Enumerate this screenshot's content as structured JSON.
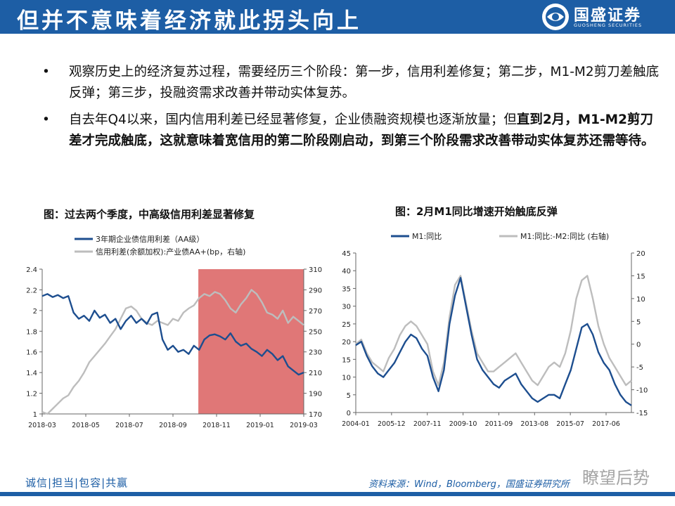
{
  "header": {
    "title": "但并不意味着经济就此拐头向上",
    "logo_name": "国盛证券",
    "logo_sub": "GUOSHENG SECURITIES"
  },
  "bullets": [
    {
      "text": "观察历史上的经济复苏过程，需要经历三个阶段：第一步，信用利差修复；第二步，M1-M2剪刀差触底反弹；第三步，投融资需求改善并带动实体复苏。"
    },
    {
      "plain": "自去年Q4以来，国内信用利差已经显著修复，企业债融资规模也逐渐放量；但",
      "bold": "直到2月，M1-M2剪刀差才完成触底，这就意味着宽信用的第二阶段刚启动，到第三个阶段需求改善带动实体复苏还需等待。"
    }
  ],
  "bullet_glyph": "•",
  "chart_data": [
    {
      "type": "line",
      "title": "图：过去两个季度，中高级信用利差显著修复",
      "x_tick_labels": [
        "2018-03",
        "2018-05",
        "2018-07",
        "2018-09",
        "2018-11",
        "2019-01",
        "2019-03"
      ],
      "x_range": [
        "2018-03",
        "2019-03"
      ],
      "y_left": {
        "range": [
          1,
          2.4
        ],
        "ticks": [
          "1",
          "1.2",
          "1.4",
          "1.6",
          "1.8",
          "2",
          "2.2",
          "2.4"
        ]
      },
      "y_right": {
        "range": [
          170,
          310
        ],
        "ticks": [
          "170",
          "190",
          "210",
          "230",
          "250",
          "270",
          "290",
          "310"
        ]
      },
      "highlight": {
        "from": 0.597,
        "to": 1.0,
        "color": "#e07777"
      },
      "series": [
        {
          "name": "3年期企业债信用利差（AA级）",
          "axis": "left",
          "color": "#1d4e8f",
          "x": [
            0,
            0.02,
            0.04,
            0.06,
            0.08,
            0.1,
            0.12,
            0.14,
            0.16,
            0.18,
            0.2,
            0.22,
            0.24,
            0.26,
            0.28,
            0.3,
            0.32,
            0.34,
            0.36,
            0.38,
            0.4,
            0.42,
            0.44,
            0.46,
            0.48,
            0.5,
            0.52,
            0.54,
            0.56,
            0.58,
            0.6,
            0.62,
            0.64,
            0.66,
            0.68,
            0.7,
            0.72,
            0.74,
            0.76,
            0.78,
            0.8,
            0.82,
            0.84,
            0.86,
            0.88,
            0.9,
            0.92,
            0.94,
            0.96,
            0.98,
            1.0
          ],
          "values": [
            2.14,
            2.16,
            2.13,
            2.15,
            2.12,
            2.14,
            1.98,
            1.92,
            1.95,
            1.9,
            2.0,
            1.93,
            1.96,
            1.88,
            1.92,
            1.82,
            1.9,
            1.95,
            1.88,
            1.92,
            1.87,
            1.96,
            1.98,
            1.72,
            1.62,
            1.66,
            1.6,
            1.62,
            1.58,
            1.66,
            1.62,
            1.72,
            1.76,
            1.77,
            1.75,
            1.72,
            1.78,
            1.7,
            1.66,
            1.68,
            1.63,
            1.6,
            1.56,
            1.62,
            1.58,
            1.52,
            1.56,
            1.46,
            1.42,
            1.38,
            1.4
          ]
        },
        {
          "name": "信用利差(余额加权):产业债AA+(bp，右轴)",
          "axis": "right",
          "color": "#bdbdbd",
          "x": [
            0,
            0.02,
            0.04,
            0.06,
            0.08,
            0.1,
            0.12,
            0.14,
            0.16,
            0.18,
            0.2,
            0.22,
            0.24,
            0.26,
            0.28,
            0.3,
            0.32,
            0.34,
            0.36,
            0.38,
            0.4,
            0.42,
            0.44,
            0.46,
            0.48,
            0.5,
            0.52,
            0.54,
            0.56,
            0.58,
            0.6,
            0.62,
            0.64,
            0.66,
            0.68,
            0.7,
            0.72,
            0.74,
            0.76,
            0.78,
            0.8,
            0.82,
            0.84,
            0.86,
            0.88,
            0.9,
            0.92,
            0.94,
            0.96,
            0.98,
            1.0
          ],
          "values": [
            172,
            170,
            175,
            180,
            185,
            188,
            196,
            202,
            210,
            220,
            226,
            232,
            238,
            245,
            252,
            262,
            272,
            274,
            270,
            262,
            258,
            256,
            260,
            258,
            256,
            262,
            260,
            268,
            272,
            275,
            282,
            286,
            284,
            288,
            286,
            280,
            272,
            268,
            276,
            282,
            290,
            286,
            278,
            268,
            266,
            262,
            270,
            258,
            264,
            260,
            256
          ]
        }
      ]
    },
    {
      "type": "line",
      "title": "图：2月M1同比增速开始触底反弹",
      "x_tick_labels": [
        "2004-01",
        "2005-12",
        "2007-11",
        "2009-10",
        "2011-09",
        "2013-08",
        "2015-07",
        "2017-06"
      ],
      "y_left": {
        "range": [
          0,
          45
        ],
        "ticks": [
          "0",
          "5",
          "10",
          "15",
          "20",
          "25",
          "30",
          "35",
          "40",
          "45"
        ]
      },
      "y_right": {
        "range": [
          -15,
          20
        ],
        "ticks": [
          "-15",
          "-10",
          "-5",
          "0",
          "5",
          "10",
          "15",
          "20"
        ]
      },
      "series": [
        {
          "name": "M1:同比",
          "axis": "left",
          "color": "#1d4e8f",
          "x": [
            0,
            0.02,
            0.04,
            0.06,
            0.08,
            0.1,
            0.12,
            0.14,
            0.16,
            0.18,
            0.2,
            0.22,
            0.24,
            0.26,
            0.28,
            0.3,
            0.32,
            0.34,
            0.36,
            0.38,
            0.4,
            0.42,
            0.44,
            0.46,
            0.48,
            0.5,
            0.52,
            0.54,
            0.56,
            0.58,
            0.6,
            0.62,
            0.64,
            0.66,
            0.68,
            0.7,
            0.72,
            0.74,
            0.76,
            0.78,
            0.8,
            0.82,
            0.84,
            0.86,
            0.88,
            0.9,
            0.92,
            0.94,
            0.96,
            0.98,
            1.0
          ],
          "values": [
            19,
            20,
            16,
            13,
            11,
            10,
            12,
            14,
            17,
            20,
            22,
            21,
            18,
            16,
            10,
            6,
            12,
            25,
            33,
            38,
            30,
            22,
            15,
            12,
            10,
            8,
            7,
            9,
            10,
            11,
            8,
            6,
            4,
            3,
            4,
            5,
            5,
            4,
            8,
            12,
            18,
            24,
            25,
            22,
            17,
            14,
            12,
            8,
            5,
            3,
            2
          ]
        },
        {
          "name": "M1:同比:-M2:同比 (右轴)",
          "axis": "right",
          "color": "#bdbdbd",
          "x": [
            0,
            0.02,
            0.04,
            0.06,
            0.08,
            0.1,
            0.12,
            0.14,
            0.16,
            0.18,
            0.2,
            0.22,
            0.24,
            0.26,
            0.28,
            0.3,
            0.32,
            0.34,
            0.36,
            0.38,
            0.4,
            0.42,
            0.44,
            0.46,
            0.48,
            0.5,
            0.52,
            0.54,
            0.56,
            0.58,
            0.6,
            0.62,
            0.64,
            0.66,
            0.68,
            0.7,
            0.72,
            0.74,
            0.76,
            0.78,
            0.8,
            0.82,
            0.84,
            0.86,
            0.88,
            0.9,
            0.92,
            0.94,
            0.96,
            0.98,
            1.0
          ],
          "values": [
            0,
            1,
            -2,
            -4,
            -5,
            -6,
            -3,
            -1,
            2,
            4,
            5,
            4,
            2,
            0,
            -6,
            -9,
            -4,
            6,
            13,
            15,
            9,
            3,
            -2,
            -4,
            -6,
            -6,
            -5,
            -4,
            -3,
            -2,
            -4,
            -6,
            -8,
            -9,
            -7,
            -5,
            -4,
            -5,
            -2,
            3,
            10,
            14,
            15,
            10,
            4,
            0,
            -3,
            -5,
            -7,
            -9,
            -8
          ]
        }
      ]
    }
  ],
  "footer": {
    "motto": "诚信|担当|包容|共赢",
    "source": "资料来源：Wind，Bloomberg，国盛证券研究所",
    "watermark": "瞭望后势"
  },
  "colors": {
    "brand": "#1d5ea5",
    "series_dark": "#1d4e8f",
    "series_light": "#bdbdbd",
    "highlight": "#e07777"
  }
}
